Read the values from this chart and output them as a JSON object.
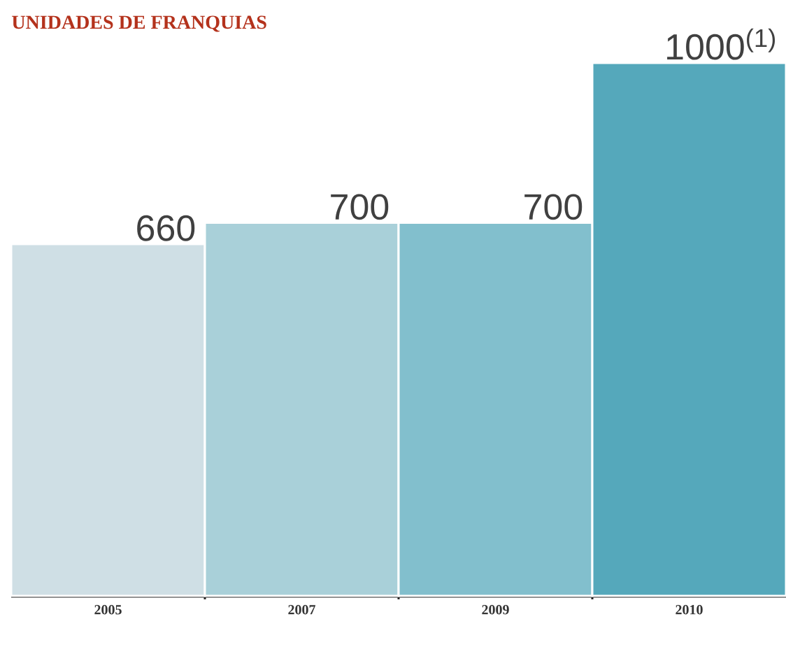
{
  "chart_data": {
    "type": "bar",
    "title": "UNIDADES DE FRANQUIAS",
    "categories": [
      "2005",
      "2007",
      "2009",
      "2010"
    ],
    "values": [
      660,
      700,
      700,
      1000
    ],
    "colors": [
      "#cfdfe5",
      "#a9d0d9",
      "#82bfcd",
      "#55a8bb"
    ],
    "value_labels": [
      "660",
      "700",
      "700",
      "1000$^{(1)}$"
    ]
  }
}
